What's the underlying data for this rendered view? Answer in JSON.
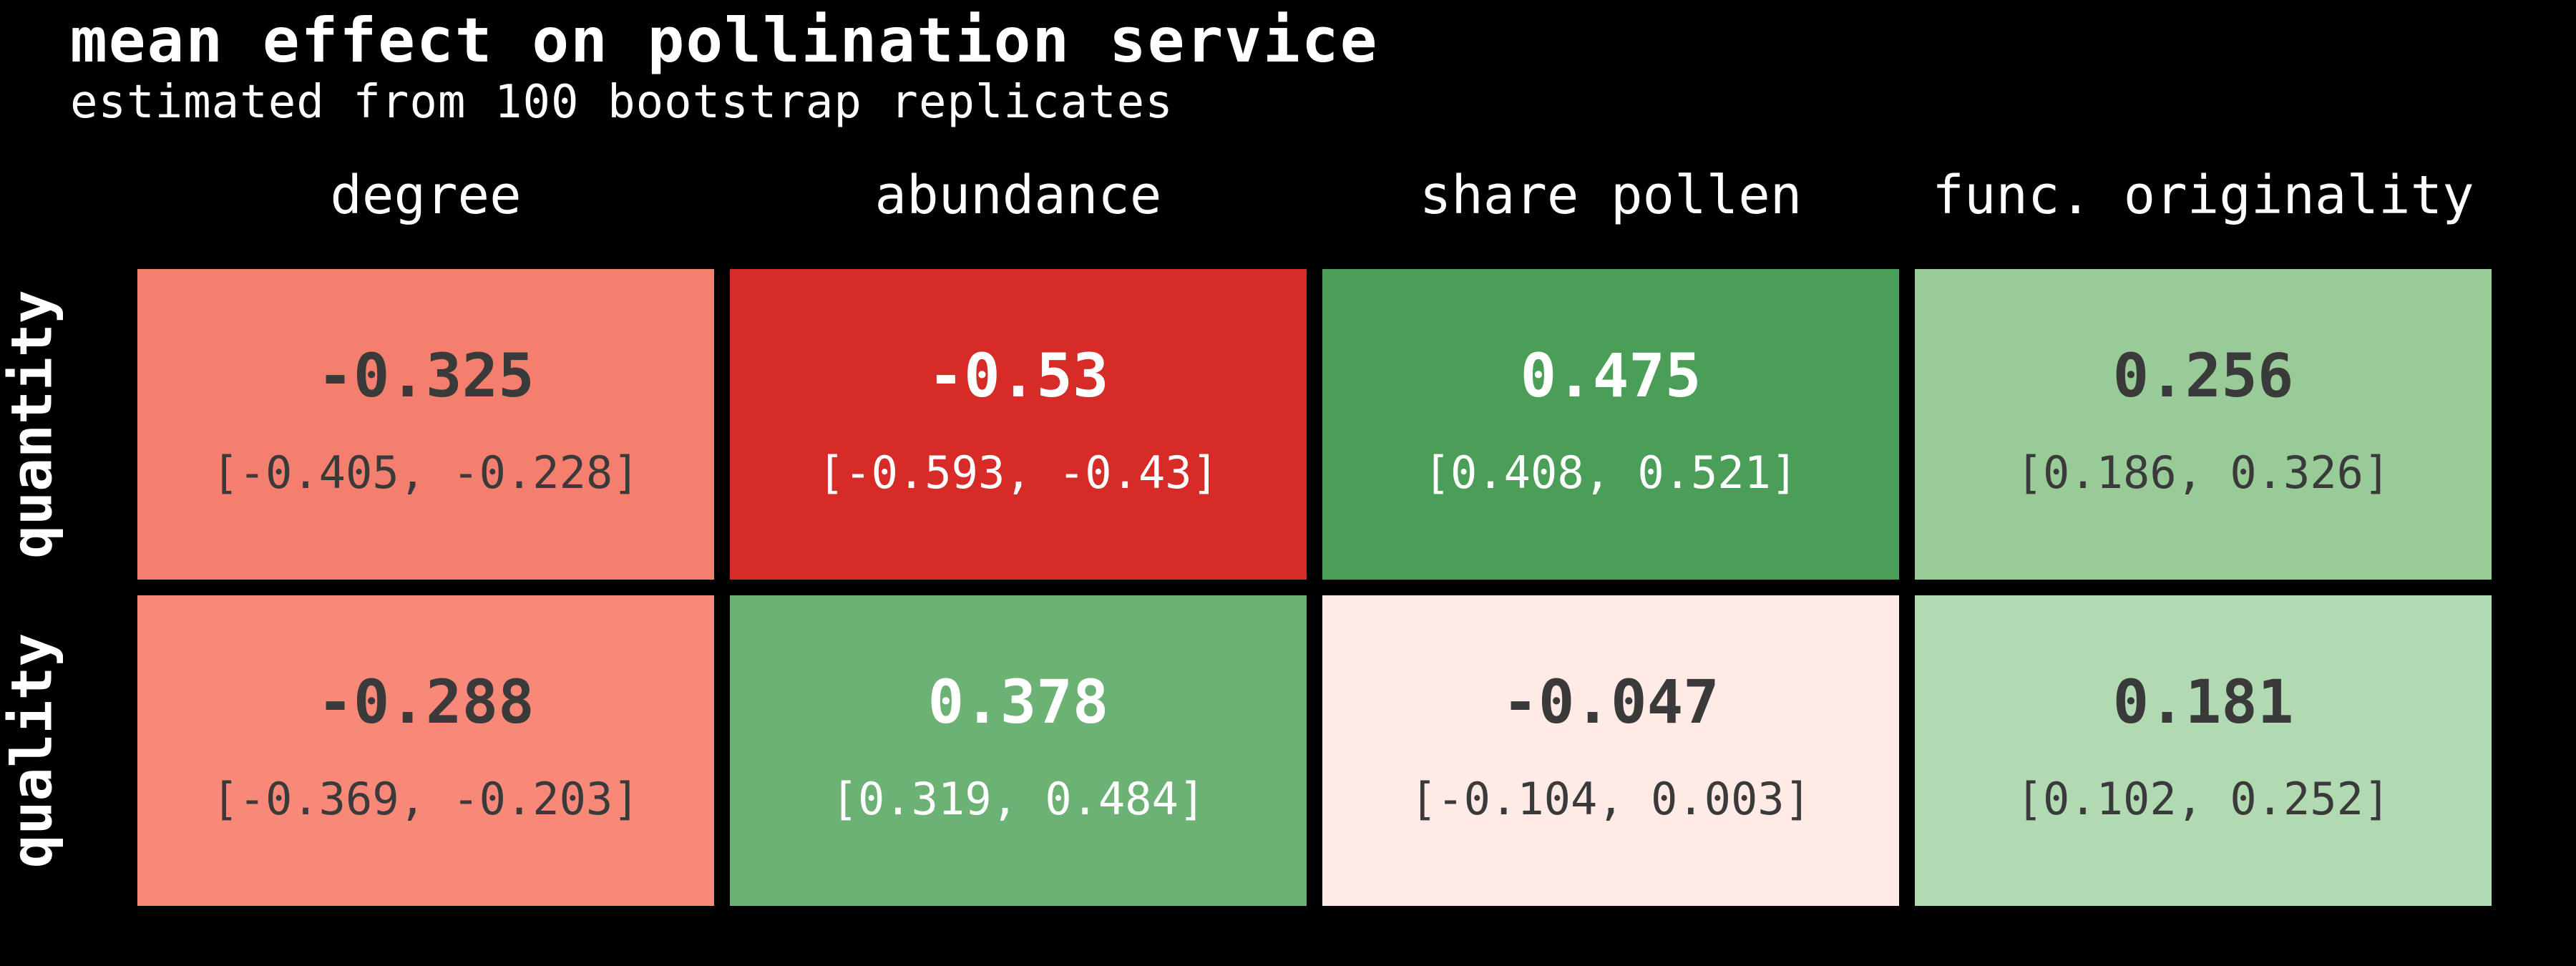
{
  "chart_data": {
    "type": "heatmap",
    "title": "mean effect on pollination service",
    "subtitle": "estimated from 100 bootstrap replicates",
    "columns": [
      "degree",
      "abundance",
      "share pollen",
      "func. originality"
    ],
    "rows": [
      "quantity",
      "quality"
    ],
    "cells": [
      [
        {
          "mean": "-0.325",
          "ci": "[-0.405, -0.228]",
          "value": -0.325,
          "fill": "#f47f6e",
          "text_color": "#3a3a3a"
        },
        {
          "mean": "-0.53",
          "ci": "[-0.593, -0.43]",
          "value": -0.53,
          "fill": "#d62b27",
          "text_color": "#ffffff"
        },
        {
          "mean": "0.475",
          "ci": "[0.408, 0.521]",
          "value": 0.475,
          "fill": "#4a9e57",
          "text_color": "#ffffff"
        },
        {
          "mean": "0.256",
          "ci": "[0.186, 0.326]",
          "value": 0.256,
          "fill": "#99cb98",
          "text_color": "#3a3a3a"
        }
      ],
      [
        {
          "mean": "-0.288",
          "ci": "[-0.369, -0.203]",
          "value": -0.288,
          "fill": "#f88878",
          "text_color": "#3a3a3a"
        },
        {
          "mean": "0.378",
          "ci": "[0.319, 0.484]",
          "value": 0.378,
          "fill": "#6bb274",
          "text_color": "#ffffff"
        },
        {
          "mean": "-0.047",
          "ci": "[-0.104, 0.003]",
          "value": -0.047,
          "fill": "#ffeae6",
          "text_color": "#3a3a3a"
        },
        {
          "mean": "0.181",
          "ci": "[0.102, 0.252]",
          "value": 0.181,
          "fill": "#b2dab2",
          "text_color": "#3a3a3a"
        }
      ]
    ]
  }
}
